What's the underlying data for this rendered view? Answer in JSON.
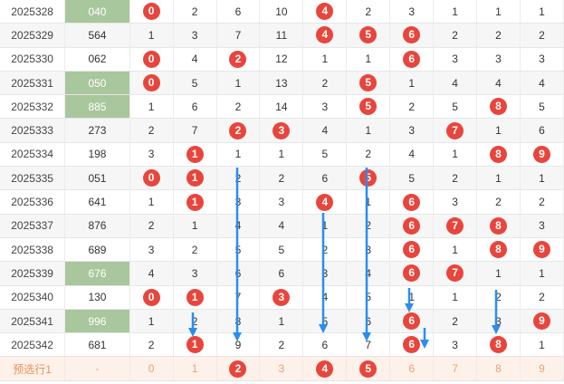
{
  "rows": [
    {
      "period": "2025328",
      "num": "040",
      "hl": true,
      "cells": [
        "0",
        "2",
        "6",
        "10",
        "4",
        "2",
        "3",
        "1",
        "1",
        "1"
      ],
      "balls": [
        0,
        4
      ]
    },
    {
      "period": "2025329",
      "num": "564",
      "hl": false,
      "cells": [
        "1",
        "3",
        "7",
        "11",
        "4",
        "5",
        "6",
        "2",
        "2",
        "2"
      ],
      "balls": [
        4,
        5,
        6
      ]
    },
    {
      "period": "2025330",
      "num": "062",
      "hl": false,
      "cells": [
        "0",
        "4",
        "2",
        "12",
        "1",
        "1",
        "6",
        "3",
        "3",
        "3"
      ],
      "balls": [
        0,
        2,
        6
      ]
    },
    {
      "period": "2025331",
      "num": "050",
      "hl": true,
      "cells": [
        "0",
        "5",
        "1",
        "13",
        "2",
        "5",
        "1",
        "4",
        "4",
        "4"
      ],
      "balls": [
        0,
        5
      ]
    },
    {
      "period": "2025332",
      "num": "885",
      "hl": true,
      "cells": [
        "1",
        "6",
        "2",
        "14",
        "3",
        "5",
        "2",
        "5",
        "8",
        "5"
      ],
      "balls": [
        5,
        8
      ]
    },
    {
      "period": "2025333",
      "num": "273",
      "hl": false,
      "cells": [
        "2",
        "7",
        "2",
        "3",
        "4",
        "1",
        "3",
        "7",
        "1",
        "6"
      ],
      "balls": [
        2,
        3,
        7
      ]
    },
    {
      "period": "2025334",
      "num": "198",
      "hl": false,
      "cells": [
        "3",
        "1",
        "1",
        "1",
        "5",
        "2",
        "4",
        "1",
        "8",
        "9"
      ],
      "balls": [
        1,
        8,
        9
      ]
    },
    {
      "period": "2025335",
      "num": "051",
      "hl": false,
      "cells": [
        "0",
        "1",
        "2",
        "2",
        "6",
        "5",
        "5",
        "2",
        "1",
        "1"
      ],
      "balls": [
        0,
        1,
        5
      ]
    },
    {
      "period": "2025336",
      "num": "641",
      "hl": false,
      "cells": [
        "1",
        "1",
        "3",
        "3",
        "4",
        "1",
        "6",
        "3",
        "2",
        "2"
      ],
      "balls": [
        1,
        4,
        6
      ]
    },
    {
      "period": "2025337",
      "num": "876",
      "hl": false,
      "cells": [
        "2",
        "1",
        "4",
        "4",
        "1",
        "2",
        "6",
        "7",
        "8",
        "3"
      ],
      "balls": [
        6,
        7,
        8
      ]
    },
    {
      "period": "2025338",
      "num": "689",
      "hl": false,
      "cells": [
        "3",
        "2",
        "5",
        "5",
        "2",
        "3",
        "6",
        "1",
        "8",
        "9"
      ],
      "balls": [
        6,
        8,
        9
      ]
    },
    {
      "period": "2025339",
      "num": "676",
      "hl": true,
      "cells": [
        "4",
        "3",
        "6",
        "6",
        "3",
        "4",
        "6",
        "7",
        "1",
        "1"
      ],
      "balls": [
        6,
        7
      ]
    },
    {
      "period": "2025340",
      "num": "130",
      "hl": false,
      "cells": [
        "0",
        "1",
        "7",
        "3",
        "4",
        "5",
        "1",
        "1",
        "2",
        "2"
      ],
      "balls": [
        0,
        1,
        3
      ]
    },
    {
      "period": "2025341",
      "num": "996",
      "hl": true,
      "cells": [
        "1",
        "2",
        "8",
        "1",
        "5",
        "6",
        "6",
        "2",
        "3",
        "9"
      ],
      "balls": [
        6,
        9
      ]
    },
    {
      "period": "2025342",
      "num": "681",
      "hl": false,
      "cells": [
        "2",
        "1",
        "9",
        "2",
        "6",
        "7",
        "6",
        "3",
        "8",
        "1"
      ],
      "balls": [
        1,
        6,
        8
      ]
    }
  ],
  "footer": {
    "label": "预选行1",
    "num": "-",
    "cells": [
      "0",
      "1",
      "2",
      "3",
      "4",
      "5",
      "6",
      "7",
      "8",
      "9"
    ],
    "balls": [
      2,
      4,
      5
    ]
  },
  "colors": {
    "ball": "#e8453c",
    "arrow": "#2a8ef0",
    "highlight": "#a8c79c"
  }
}
